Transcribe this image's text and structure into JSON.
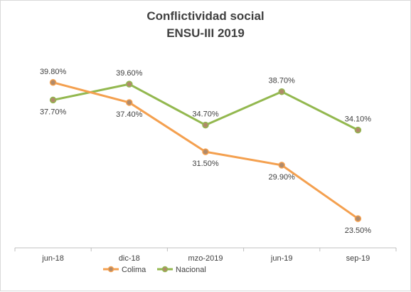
{
  "chart_data": {
    "type": "line",
    "title": "Conflictividad social",
    "subtitle": "ENSU-III 2019",
    "categories": [
      "jun-18",
      "dic-18",
      "mzo-2019",
      "jun-19",
      "sep-19"
    ],
    "series": [
      {
        "name": "Colima",
        "color": "#f4a04f",
        "values": [
          39.8,
          37.4,
          31.5,
          29.9,
          23.5
        ],
        "labels": [
          "39.80%",
          "37.40%",
          "31.50%",
          "29.90%",
          "23.50%"
        ]
      },
      {
        "name": "Nacional",
        "color": "#93b84f",
        "values": [
          37.7,
          39.6,
          34.7,
          38.7,
          34.1
        ],
        "labels": [
          "37.70%",
          "39.60%",
          "34.70%",
          "38.70%",
          "34.10%"
        ]
      }
    ],
    "ylim": [
      20,
      42
    ],
    "grid": false,
    "legend_position": "bottom",
    "marker_color": "#b08a6a"
  }
}
